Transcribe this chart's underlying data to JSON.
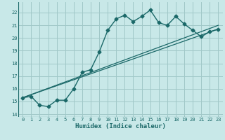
{
  "xlabel": "Humidex (Indice chaleur)",
  "xlim": [
    -0.5,
    23.5
  ],
  "ylim": [
    13.8,
    22.8
  ],
  "yticks": [
    14,
    15,
    16,
    17,
    18,
    19,
    20,
    21,
    22
  ],
  "xticks": [
    0,
    1,
    2,
    3,
    4,
    5,
    6,
    7,
    8,
    9,
    10,
    11,
    12,
    13,
    14,
    15,
    16,
    17,
    18,
    19,
    20,
    21,
    22,
    23
  ],
  "bg_color": "#c8e8e8",
  "grid_color": "#a0c8c8",
  "line_color": "#1a6868",
  "main_line": {
    "x": [
      0,
      1,
      2,
      3,
      4,
      5,
      6,
      7,
      8,
      9,
      10,
      11,
      12,
      13,
      14,
      15,
      16,
      17,
      18,
      19,
      20,
      21,
      22,
      23
    ],
    "y": [
      15.3,
      15.4,
      14.7,
      14.6,
      15.1,
      15.1,
      16.0,
      17.3,
      17.5,
      18.9,
      20.6,
      21.5,
      21.8,
      21.3,
      21.7,
      22.2,
      21.2,
      21.0,
      21.7,
      21.1,
      20.6,
      20.1,
      20.5,
      20.7
    ]
  },
  "diag_line1": {
    "x": [
      0,
      23
    ],
    "y": [
      15.3,
      20.7
    ]
  },
  "diag_line2": {
    "x": [
      0,
      23
    ],
    "y": [
      15.3,
      21.0
    ]
  },
  "marker": "D",
  "marker_size": 2.5,
  "linewidth_main": 1.0,
  "linewidth_diag": 0.9
}
